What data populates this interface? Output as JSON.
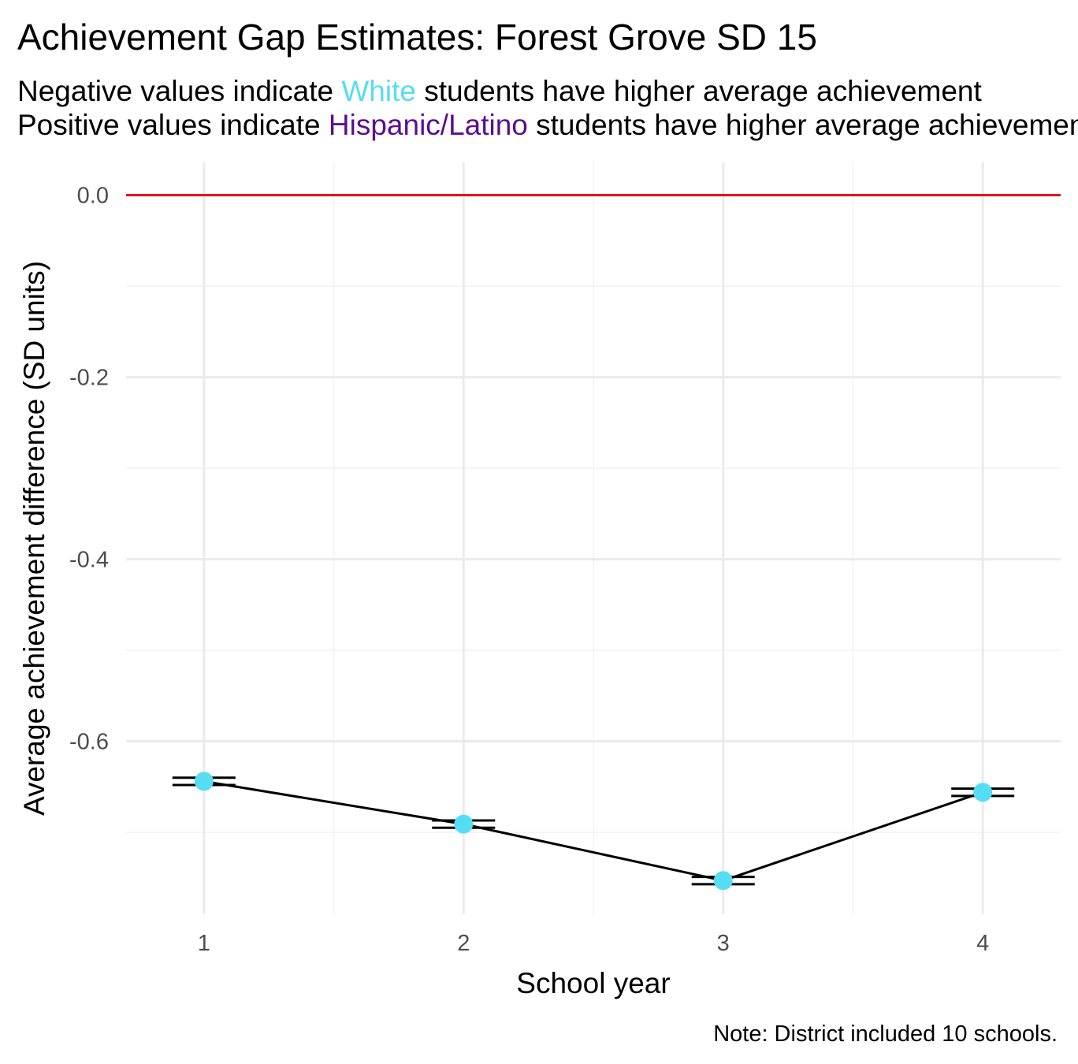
{
  "title": "Achievement Gap Estimates: Forest Grove SD 15",
  "subtitle": {
    "line1_before": "Negative values indicate ",
    "line1_highlight": "White",
    "line1_after": " students have higher average achievement",
    "line2_before": "Positive values indicate ",
    "line2_highlight": "Hispanic/Latino",
    "line2_after": " students have higher average achievement"
  },
  "colors": {
    "white_group": "#56DDF4",
    "hispanic_group": "#5C0D91",
    "reference_line": "#E8141C",
    "point": "#56DDF4",
    "line": "#000000",
    "grid_major": "#EBEBEB",
    "grid_minor": "#F3F3F3"
  },
  "note": "Note: District included 10 schools.",
  "chart_data": {
    "type": "line",
    "xlabel": "School year",
    "ylabel": "Average achievement difference (SD units)",
    "x": [
      1,
      2,
      3,
      4
    ],
    "x_tick_labels": [
      "1",
      "2",
      "3",
      "4"
    ],
    "y_tick_labels": [
      "0.0",
      "-0.2",
      "-0.4",
      "-0.6"
    ],
    "y_ticks": [
      0.0,
      -0.2,
      -0.4,
      -0.6
    ],
    "series": [
      {
        "values": [
          -0.644,
          -0.691,
          -0.753,
          -0.656
        ],
        "error_low": [
          -0.648,
          -0.695,
          -0.757,
          -0.66
        ],
        "error_high": [
          -0.64,
          -0.687,
          -0.749,
          -0.652
        ]
      }
    ],
    "reference_line_y": 0.0,
    "xlim": [
      0.7,
      4.3
    ],
    "ylim": [
      -0.79,
      0.036
    ],
    "grid": true
  }
}
